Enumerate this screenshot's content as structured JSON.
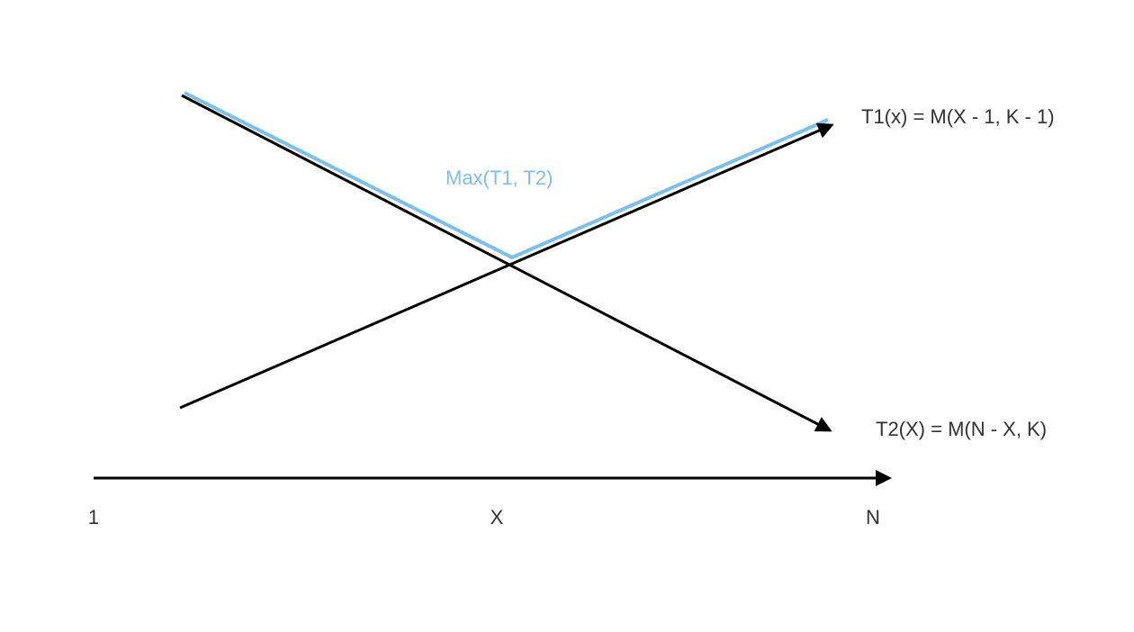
{
  "colors": {
    "background": "#ffffff",
    "line": "#000000",
    "highlight": "#7bbfec",
    "text": "#333333"
  },
  "labels": {
    "t1": "T1(x) = M(X - 1, K - 1)",
    "t2": "T2(X) = M(N - X, K)",
    "max": "Max(T1, T2)"
  },
  "axis": {
    "ticks": [
      "1",
      "X",
      "N"
    ]
  }
}
